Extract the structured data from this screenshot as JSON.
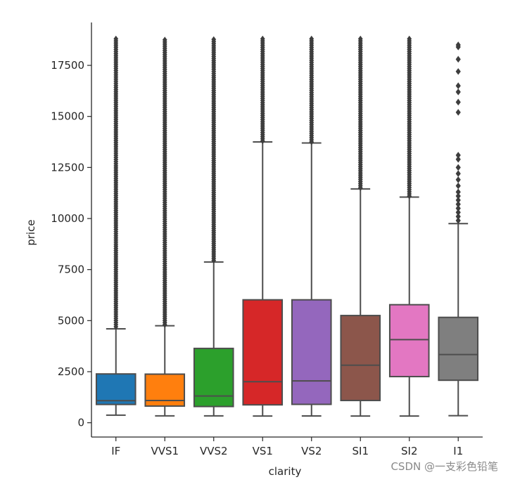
{
  "chart_data": {
    "type": "box",
    "xlabel": "clarity",
    "ylabel": "price",
    "ylim": [
      -700,
      19600
    ],
    "yticks": [
      0,
      2500,
      5000,
      7500,
      10000,
      12500,
      15000,
      17500
    ],
    "categories": [
      "IF",
      "VVS1",
      "VVS2",
      "VS1",
      "VS2",
      "SI1",
      "SI2",
      "I1"
    ],
    "boxes": [
      {
        "label": "IF",
        "color": "#1f77b4",
        "min": 369,
        "q1": 895,
        "median": 1080,
        "q3": 2390,
        "whisker_high": 4600,
        "outlier_range": [
          4700,
          18800
        ],
        "outliers": []
      },
      {
        "label": "VVS1",
        "color": "#ff7f0e",
        "min": 336,
        "q1": 816,
        "median": 1090,
        "q3": 2380,
        "whisker_high": 4750,
        "outlier_range": [
          4800,
          18750
        ],
        "outliers": []
      },
      {
        "label": "VVS2",
        "color": "#2ca02c",
        "min": 336,
        "q1": 794,
        "median": 1310,
        "q3": 3640,
        "whisker_high": 7870,
        "outlier_range": [
          7950,
          18770
        ],
        "outliers": []
      },
      {
        "label": "VS1",
        "color": "#d62728",
        "min": 327,
        "q1": 876,
        "median": 2010,
        "q3": 6020,
        "whisker_high": 13750,
        "outlier_range": [
          13800,
          18800
        ],
        "outliers": []
      },
      {
        "label": "VS2",
        "color": "#9467bd",
        "min": 334,
        "q1": 900,
        "median": 2050,
        "q3": 6020,
        "whisker_high": 13700,
        "outlier_range": [
          13750,
          18800
        ],
        "outliers": []
      },
      {
        "label": "SI1",
        "color": "#8c564b",
        "min": 326,
        "q1": 1090,
        "median": 2820,
        "q3": 5250,
        "whisker_high": 11450,
        "outlier_range": [
          11500,
          18800
        ],
        "outliers": []
      },
      {
        "label": "SI2",
        "color": "#e377c2",
        "min": 326,
        "q1": 2260,
        "median": 4070,
        "q3": 5780,
        "whisker_high": 11050,
        "outlier_range": [
          11100,
          18800
        ],
        "outliers": []
      },
      {
        "label": "I1",
        "color": "#7f7f7f",
        "min": 345,
        "q1": 2080,
        "median": 3340,
        "q3": 5160,
        "whisker_high": 9750,
        "outlier_range": [],
        "outliers": [
          9900,
          10100,
          10300,
          10500,
          10700,
          10900,
          11100,
          11300,
          11600,
          11900,
          12200,
          12500,
          12900,
          13100,
          15200,
          15700,
          16200,
          16500,
          17200,
          17800,
          18400,
          18500
        ]
      }
    ]
  },
  "watermark": "CSDN @一支彩色铅笔"
}
